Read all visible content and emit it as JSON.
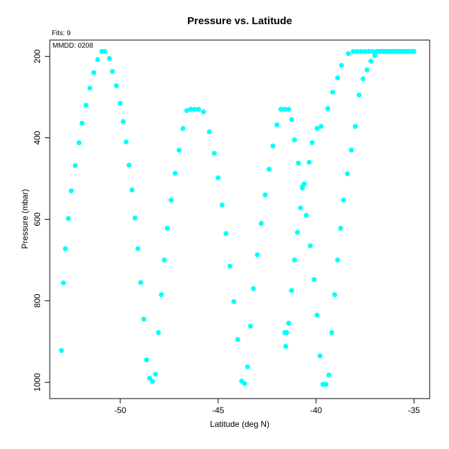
{
  "chart_data": {
    "type": "scatter",
    "title": "Pressure vs. Latitude",
    "xlabel": "Latitude (deg N)",
    "ylabel": "Pressure (mbar)",
    "annotations": [
      "Fits: 9",
      "MMDD: 0208"
    ],
    "xlim": [
      -53.6,
      -34.2
    ],
    "ylim": [
      1040,
      160
    ],
    "y_reversed": true,
    "xticks": [
      -50,
      -45,
      -40,
      -35
    ],
    "yticks": [
      200,
      400,
      600,
      800,
      1000
    ],
    "grid": false,
    "marker_color": "#00ffff",
    "series": [
      {
        "points": [
          [
            -53.0,
            922
          ],
          [
            -52.9,
            756
          ],
          [
            -52.8,
            672
          ],
          [
            -52.65,
            598
          ],
          [
            -52.5,
            530
          ],
          [
            -52.3,
            468
          ],
          [
            -52.1,
            412
          ],
          [
            -51.95,
            364
          ],
          [
            -51.75,
            320
          ],
          [
            -51.55,
            278
          ],
          [
            -51.35,
            240
          ],
          [
            -51.15,
            208
          ],
          [
            -50.95,
            188
          ],
          [
            -50.8,
            188
          ],
          [
            -50.55,
            205
          ],
          [
            -50.4,
            237
          ],
          [
            -50.2,
            272
          ],
          [
            -50.0,
            315
          ],
          [
            -49.85,
            360
          ],
          [
            -49.7,
            410
          ],
          [
            -49.55,
            467
          ],
          [
            -49.4,
            528
          ],
          [
            -49.25,
            597
          ],
          [
            -49.1,
            672
          ],
          [
            -48.95,
            755
          ],
          [
            -48.8,
            845
          ],
          [
            -48.65,
            945
          ],
          [
            -48.5,
            990
          ],
          [
            -48.35,
            998
          ],
          [
            -48.2,
            980
          ],
          [
            -48.05,
            878
          ],
          [
            -47.9,
            785
          ],
          [
            -47.75,
            700
          ],
          [
            -47.6,
            622
          ],
          [
            -47.4,
            553
          ],
          [
            -47.2,
            487
          ],
          [
            -47.0,
            430
          ],
          [
            -46.8,
            377
          ],
          [
            -46.6,
            333
          ],
          [
            -46.4,
            330
          ],
          [
            -46.2,
            330
          ],
          [
            -46.0,
            330
          ],
          [
            -45.75,
            336
          ],
          [
            -45.45,
            385
          ],
          [
            -45.2,
            438
          ],
          [
            -45.0,
            498
          ],
          [
            -44.8,
            565
          ],
          [
            -44.6,
            635
          ],
          [
            -44.4,
            715
          ],
          [
            -44.2,
            802
          ],
          [
            -44.0,
            895
          ],
          [
            -43.8,
            997
          ],
          [
            -43.65,
            1003
          ],
          [
            -43.5,
            962
          ],
          [
            -43.35,
            862
          ],
          [
            -43.2,
            770
          ],
          [
            -43.0,
            687
          ],
          [
            -42.8,
            610
          ],
          [
            -42.6,
            540
          ],
          [
            -42.4,
            477
          ],
          [
            -42.2,
            420
          ],
          [
            -42.0,
            368
          ],
          [
            -41.8,
            330
          ],
          [
            -41.6,
            330
          ],
          [
            -41.4,
            330
          ],
          [
            -41.25,
            355
          ],
          [
            -41.1,
            405
          ],
          [
            -40.9,
            462
          ],
          [
            -40.7,
            520
          ],
          [
            -40.5,
            590
          ],
          [
            -40.3,
            665
          ],
          [
            -40.1,
            748
          ],
          [
            -39.95,
            835
          ],
          [
            -39.8,
            935
          ],
          [
            -39.65,
            1005
          ],
          [
            -39.5,
            1005
          ],
          [
            -39.35,
            982
          ],
          [
            -39.2,
            878
          ],
          [
            -39.05,
            785
          ],
          [
            -38.9,
            700
          ],
          [
            -38.75,
            622
          ],
          [
            -38.6,
            553
          ],
          [
            -38.4,
            488
          ],
          [
            -38.2,
            430
          ],
          [
            -38.0,
            372
          ],
          [
            -37.8,
            295
          ],
          [
            -37.6,
            255
          ],
          [
            -37.4,
            233
          ],
          [
            -37.2,
            212
          ],
          [
            -37.0,
            198
          ],
          [
            -36.8,
            188
          ],
          [
            -36.6,
            188
          ],
          [
            -36.4,
            188
          ],
          [
            -36.2,
            188
          ],
          [
            -36.0,
            188
          ],
          [
            -35.8,
            188
          ],
          [
            -35.6,
            188
          ],
          [
            -35.4,
            188
          ],
          [
            -35.2,
            188
          ],
          [
            -35.0,
            188
          ],
          [
            -38.35,
            193
          ],
          [
            -38.1,
            188
          ],
          [
            -37.9,
            188
          ],
          [
            -37.7,
            188
          ],
          [
            -37.5,
            188
          ],
          [
            -37.3,
            188
          ],
          [
            -37.1,
            188
          ],
          [
            -36.9,
            188
          ],
          [
            -36.7,
            188
          ],
          [
            -36.5,
            188
          ],
          [
            -36.3,
            188
          ],
          [
            -36.1,
            188
          ],
          [
            -35.9,
            188
          ],
          [
            -35.7,
            188
          ],
          [
            -35.5,
            188
          ],
          [
            -35.3,
            188
          ],
          [
            -35.1,
            188
          ],
          [
            -38.7,
            222
          ],
          [
            -38.9,
            253
          ],
          [
            -39.15,
            288
          ],
          [
            -39.4,
            328
          ],
          [
            -39.75,
            372
          ],
          [
            -39.95,
            377
          ],
          [
            -40.2,
            412
          ],
          [
            -40.35,
            460
          ],
          [
            -40.6,
            513
          ],
          [
            -40.7,
            523
          ],
          [
            -40.8,
            572
          ],
          [
            -40.95,
            632
          ],
          [
            -41.1,
            700
          ],
          [
            -41.25,
            775
          ],
          [
            -41.4,
            855
          ],
          [
            -41.5,
            878
          ],
          [
            -41.6,
            878
          ],
          [
            -41.55,
            912
          ]
        ]
      }
    ]
  }
}
